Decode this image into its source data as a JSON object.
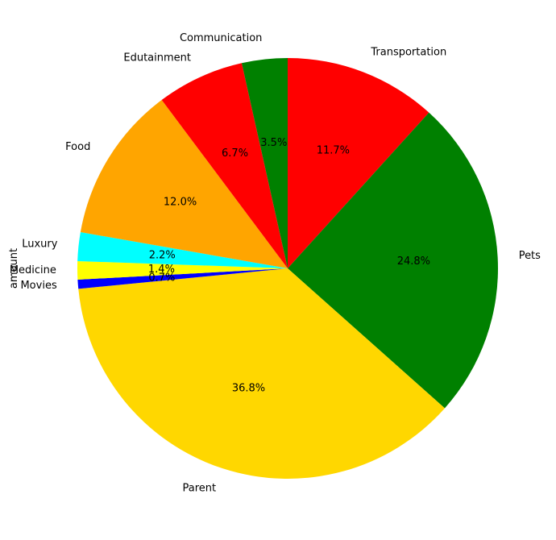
{
  "chart_data": {
    "type": "pie",
    "ylabel": "amount",
    "start_angle_deg": 90,
    "direction": "clockwise",
    "slices": [
      {
        "label": "Transportation",
        "percent": 11.7,
        "pct_label": "11.7%",
        "color": "#ff0000"
      },
      {
        "label": "Pets",
        "percent": 24.8,
        "pct_label": "24.8%",
        "color": "#008000"
      },
      {
        "label": "Parent",
        "percent": 36.8,
        "pct_label": "36.8%",
        "color": "#ffd700"
      },
      {
        "label": "Movies",
        "percent": 0.7,
        "pct_label": "0.7%",
        "color": "#0000ff"
      },
      {
        "label": "Medicine",
        "percent": 1.4,
        "pct_label": "1.4%",
        "color": "#ffff00"
      },
      {
        "label": "Luxury",
        "percent": 2.2,
        "pct_label": "2.2%",
        "color": "#00ffff"
      },
      {
        "label": "Food",
        "percent": 12.0,
        "pct_label": "12.0%",
        "color": "#ffa500"
      },
      {
        "label": "Edutainment",
        "percent": 6.7,
        "pct_label": "6.7%",
        "color": "#ff0000"
      },
      {
        "label": "Communication",
        "percent": 3.5,
        "pct_label": "3.5%",
        "color": "#008000"
      }
    ]
  }
}
